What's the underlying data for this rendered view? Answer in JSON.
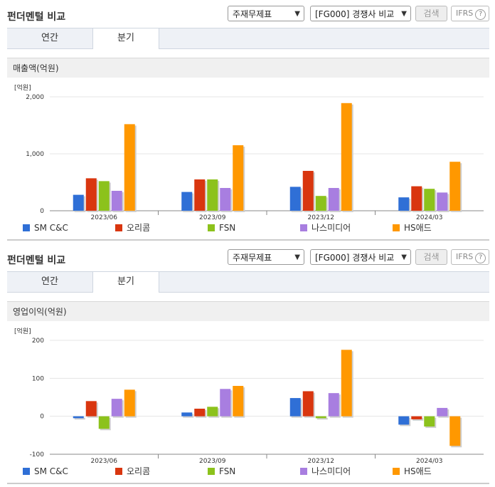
{
  "panels": [
    {
      "header": "펀더멘털 비교",
      "select1": "주재무제표",
      "select2": "[FG000] 경쟁사 비교",
      "search": "검색",
      "ifrs": "IFRS",
      "tabs": [
        "연간",
        "분기"
      ],
      "active_tab": 1,
      "section_title": "매출액(억원)"
    },
    {
      "header": "펀더멘털 비교",
      "select1": "주재무제표",
      "select2": "[FG000] 경쟁사 비교",
      "search": "검색",
      "ifrs": "IFRS",
      "tabs": [
        "연간",
        "분기"
      ],
      "active_tab": 1,
      "section_title": "영업이익(억원)"
    }
  ],
  "chart_data": [
    {
      "type": "bar",
      "title": "매출액(억원)",
      "unit_label": "[억원]",
      "categories": [
        "2023/06",
        "2023/09",
        "2023/12",
        "2024/03"
      ],
      "ylim": [
        0,
        2000
      ],
      "yticks": [
        0,
        1000,
        2000
      ],
      "ytick_labels": [
        "0",
        "1,000",
        "2,000"
      ],
      "legend": "bottom",
      "series": [
        {
          "name": "SM C&C",
          "color": "#2f6fd6",
          "values": [
            280,
            330,
            420,
            235
          ]
        },
        {
          "name": "오리콤",
          "color": "#d9360f",
          "values": [
            570,
            550,
            700,
            430
          ]
        },
        {
          "name": "FSN",
          "color": "#8cc21c",
          "values": [
            520,
            550,
            260,
            385
          ]
        },
        {
          "name": "나스미디어",
          "color": "#a87ee0",
          "values": [
            350,
            400,
            400,
            320
          ]
        },
        {
          "name": "HS애드",
          "color": "#ff9800",
          "values": [
            1520,
            1150,
            1890,
            860
          ]
        }
      ]
    },
    {
      "type": "bar",
      "title": "영업이익(억원)",
      "unit_label": "[억원]",
      "categories": [
        "2023/06",
        "2023/09",
        "2023/12",
        "2024/03"
      ],
      "ylim": [
        -100,
        200
      ],
      "yticks": [
        -100,
        0,
        100,
        200
      ],
      "ytick_labels": [
        "-100",
        "0",
        "100",
        "200"
      ],
      "legend": "bottom",
      "series": [
        {
          "name": "SM C&C",
          "color": "#2f6fd6",
          "values": [
            -5,
            10,
            48,
            -22
          ]
        },
        {
          "name": "오리콤",
          "color": "#d9360f",
          "values": [
            40,
            20,
            66,
            -8
          ]
        },
        {
          "name": "FSN",
          "color": "#8cc21c",
          "values": [
            -33,
            25,
            -5,
            -27
          ]
        },
        {
          "name": "나스미디어",
          "color": "#a87ee0",
          "values": [
            46,
            72,
            61,
            22
          ]
        },
        {
          "name": "HS애드",
          "color": "#ff9800",
          "values": [
            70,
            80,
            175,
            -78
          ]
        }
      ]
    }
  ]
}
